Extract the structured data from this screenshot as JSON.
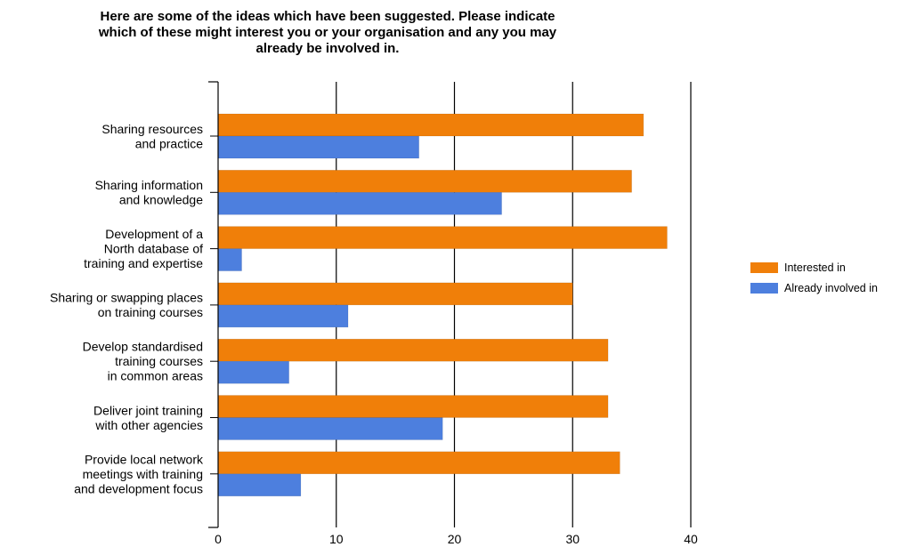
{
  "chart_data": {
    "type": "bar",
    "orientation": "horizontal",
    "title_lines": [
      "Here are some of the ideas which have been suggested. Please indicate",
      "which of these might interest you or your organisation and any you may",
      "already be involved in."
    ],
    "categories": [
      [
        "Sharing resources",
        "and practice"
      ],
      [
        "Sharing information",
        "and knowledge"
      ],
      [
        "Development of a",
        "North database of",
        "training and expertise"
      ],
      [
        "Sharing or swapping places",
        "on training courses"
      ],
      [
        "Develop standardised",
        "training courses",
        "in common areas"
      ],
      [
        "Deliver joint training",
        "with other agencies"
      ],
      [
        "Provide local network",
        "meetings with training",
        "and development focus"
      ]
    ],
    "series": [
      {
        "name": "Interested in",
        "color": "#F07F09",
        "values": [
          36,
          35,
          38,
          30,
          33,
          33,
          34
        ]
      },
      {
        "name": "Already involved in",
        "color": "#4D7FDE",
        "values": [
          17,
          24,
          2,
          11,
          6,
          19,
          7
        ]
      }
    ],
    "xlim": [
      0,
      40
    ],
    "x_ticks": [
      "0",
      "10",
      "20",
      "30",
      "40"
    ],
    "xlabel": "",
    "ylabel": "",
    "grid": "vertical",
    "legend": "right"
  }
}
